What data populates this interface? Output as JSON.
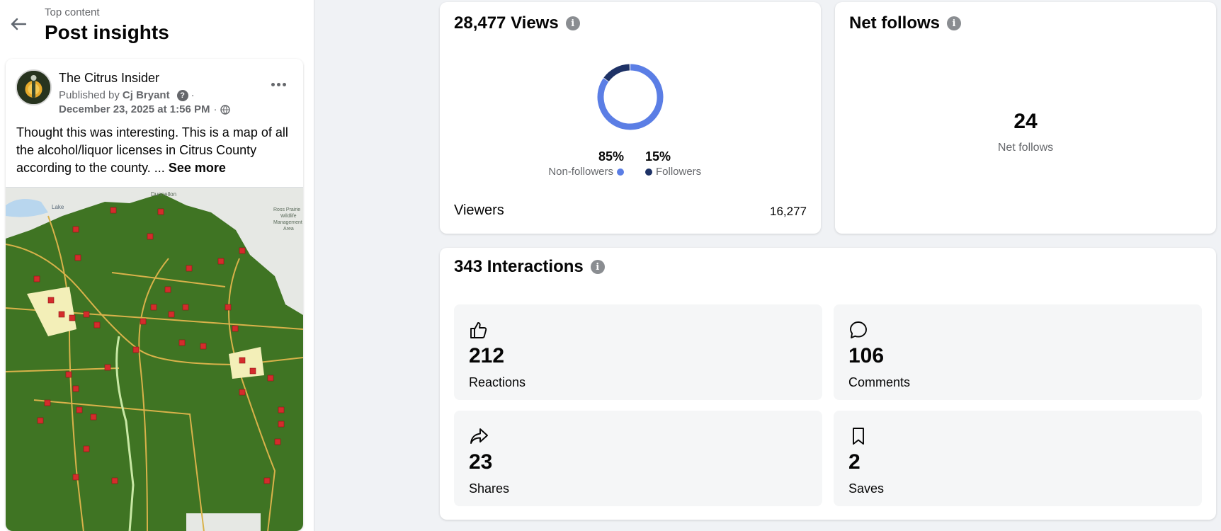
{
  "header": {
    "breadcrumb": "Top content",
    "title": "Post insights"
  },
  "post": {
    "page_name": "The Citrus Insider",
    "published_prefix": "Published by",
    "publisher": "Cj Bryant",
    "help_glyph": "?",
    "date": "December 23, 2025 at 1:56 PM",
    "separator": "·",
    "text": "Thought this was interesting. This is a map of all the alcohol/liquor licenses in Citrus County according to the county. ...",
    "see_more": "See more",
    "map_labels": [
      "Lake",
      "Dunnellon",
      "Ross Prairie",
      "Wildlife",
      "Management",
      "Area"
    ]
  },
  "views": {
    "title": "28,477 Views",
    "info_glyph": "i",
    "non_followers_pct": "85%",
    "non_followers_label": "Non-followers",
    "followers_pct": "15%",
    "followers_label": "Followers",
    "viewers_label": "Viewers",
    "viewers_value": "16,277",
    "colors": {
      "non_followers": "#5b7ee5",
      "followers": "#1e3266"
    }
  },
  "follows": {
    "title": "Net follows",
    "info_glyph": "i",
    "value": "24",
    "label": "Net follows"
  },
  "interactions": {
    "title": "343 Interactions",
    "info_glyph": "i",
    "tiles": [
      {
        "icon": "thumbs-up-icon",
        "value": "212",
        "label": "Reactions"
      },
      {
        "icon": "comment-icon",
        "value": "106",
        "label": "Comments"
      },
      {
        "icon": "share-icon",
        "value": "23",
        "label": "Shares"
      },
      {
        "icon": "bookmark-icon",
        "value": "2",
        "label": "Saves"
      }
    ]
  },
  "chart_data": {
    "type": "pie",
    "categories": [
      "Non-followers",
      "Followers"
    ],
    "values": [
      85,
      15
    ],
    "colors": [
      "#5b7ee5",
      "#1e3266"
    ],
    "style": "donut"
  }
}
